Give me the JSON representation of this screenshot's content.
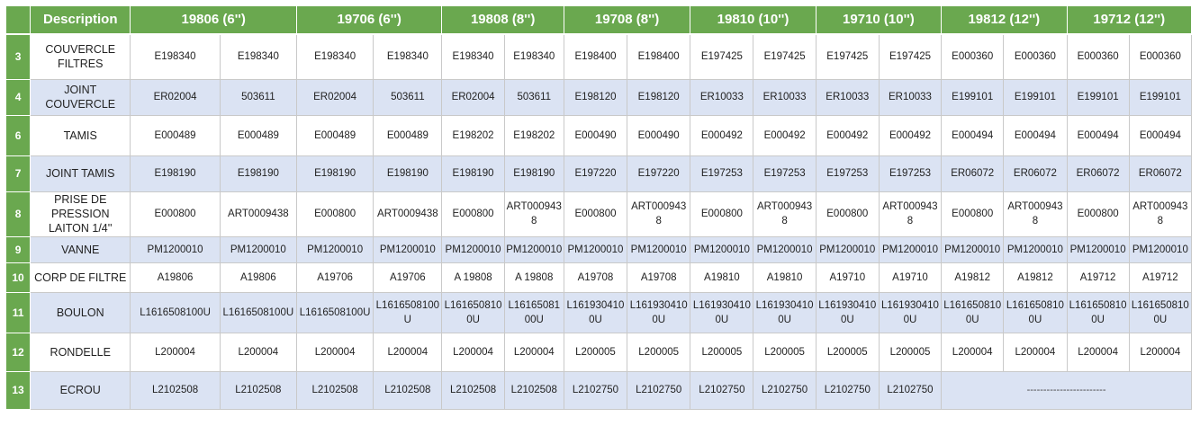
{
  "header": {
    "description": "Description",
    "groups": [
      "19806 (6'')",
      "19706 (6'')",
      "19808 (8'')",
      "19708 (8'')",
      "19810 (10'')",
      "19710 (10'')",
      "19812 (12'')",
      "19712 (12'')"
    ]
  },
  "rows": [
    {
      "num": "3",
      "desc": "COUVERCLE FILTRES",
      "cells": [
        "E198340",
        "E198340",
        "E198340",
        "E198340",
        "E198340",
        "E198340",
        "E198400",
        "E198400",
        "E197425",
        "E197425",
        "E197425",
        "E197425",
        "E000360",
        "E000360",
        "E000360",
        "E000360"
      ]
    },
    {
      "num": "4",
      "desc": "JOINT COUVERCLE",
      "cells": [
        "ER02004",
        "503611",
        "ER02004",
        "503611",
        "ER02004",
        "503611",
        "E198120",
        "E198120",
        "ER10033",
        "ER10033",
        "ER10033",
        "ER10033",
        "E199101",
        "E199101",
        "E199101",
        "E199101"
      ]
    },
    {
      "num": "6",
      "desc": "TAMIS",
      "cells": [
        "E000489",
        "E000489",
        "E000489",
        "E000489",
        "E198202",
        "E198202",
        "E000490",
        "E000490",
        "E000492",
        "E000492",
        "E000492",
        "E000492",
        "E000494",
        "E000494",
        "E000494",
        "E000494"
      ]
    },
    {
      "num": "7",
      "desc": "JOINT TAMIS",
      "cells": [
        "E198190",
        "E198190",
        "E198190",
        "E198190",
        "E198190",
        "E198190",
        "E197220",
        "E197220",
        "E197253",
        "E197253",
        "E197253",
        "E197253",
        "ER06072",
        "ER06072",
        "ER06072",
        "ER06072"
      ]
    },
    {
      "num": "8",
      "desc": "PRISE DE PRESSION LAITON 1/4''",
      "cells": [
        "E000800",
        "ART0009438",
        "E000800",
        "ART0009438",
        "E000800",
        "ART0009438",
        "E000800",
        "ART0009438",
        "E000800",
        "ART0009438",
        "E000800",
        "ART0009438",
        "E000800",
        "ART0009438",
        "E000800",
        "ART0009438"
      ]
    },
    {
      "num": "9",
      "desc": "VANNE",
      "cells": [
        "PM1200010",
        "PM1200010",
        "PM1200010",
        "PM1200010",
        "PM1200010",
        "PM1200010",
        "PM1200010",
        "PM1200010",
        "PM1200010",
        "PM1200010",
        "PM1200010",
        "PM1200010",
        "PM1200010",
        "PM1200010",
        "PM1200010",
        "PM1200010"
      ]
    },
    {
      "num": "10",
      "desc": "CORP DE FILTRE",
      "cells": [
        "A19806",
        "A19806",
        "A19706",
        "A19706",
        "A 19808",
        "A 19808",
        "A19708",
        "A19708",
        "A19810",
        "A19810",
        "A19710",
        "A19710",
        "A19812",
        "A19812",
        "A19712",
        "A19712"
      ]
    },
    {
      "num": "11",
      "desc": "BOULON",
      "cells": [
        "L1616508100U",
        "L1616508100U",
        "L1616508100U",
        "L1616508100U",
        "L1616508100U",
        "L1616508100U",
        "L1619304100U",
        "L1619304100U",
        "L1619304100U",
        "L1619304100U",
        "L1619304100U",
        "L1619304100U",
        "L1616508100U",
        "L1616508100U",
        "L1616508100U",
        "L1616508100U"
      ]
    },
    {
      "num": "12",
      "desc": "RONDELLE",
      "cells": [
        "L200004",
        "L200004",
        "L200004",
        "L200004",
        "L200004",
        "L200004",
        "L200005",
        "L200005",
        "L200005",
        "L200005",
        "L200005",
        "L200005",
        "L200004",
        "L200004",
        "L200004",
        "L200004"
      ]
    },
    {
      "num": "13",
      "desc": "ECROU",
      "cells": [
        "L2102508",
        "L2102508",
        "L2102508",
        "L2102508",
        "L2102508",
        "L2102508",
        "L2102750",
        "L2102750",
        "L2102750",
        "L2102750",
        "L2102750",
        "L2102750"
      ],
      "merged": "------------------------"
    }
  ]
}
